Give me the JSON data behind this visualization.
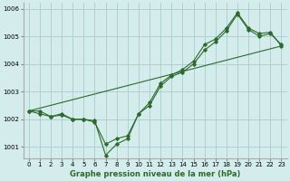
{
  "xlabel": "Graphe pression niveau de la mer (hPa)",
  "ylim": [
    1000.6,
    1006.2
  ],
  "xlim": [
    -0.5,
    23.5
  ],
  "yticks": [
    1001,
    1002,
    1003,
    1004,
    1005,
    1006
  ],
  "xticks": [
    0,
    1,
    2,
    3,
    4,
    5,
    6,
    7,
    8,
    9,
    10,
    11,
    12,
    13,
    14,
    15,
    16,
    17,
    18,
    19,
    20,
    21,
    22,
    23
  ],
  "bg_color": "#d4ecec",
  "line_color": "#2d6a2d",
  "grid_color": "#aacccc",
  "series1": [
    1002.3,
    1002.3,
    1002.1,
    1002.2,
    1002.0,
    1002.0,
    1001.9,
    1001.1,
    1001.3,
    1001.4,
    1002.2,
    1002.5,
    1003.2,
    1003.55,
    1003.7,
    1004.0,
    1004.5,
    1004.8,
    1005.2,
    1005.8,
    1005.25,
    1005.0,
    1005.1,
    1004.7
  ],
  "series2": [
    1002.3,
    1002.2,
    1002.1,
    1002.15,
    1002.0,
    1002.0,
    1001.95,
    1000.7,
    1001.1,
    1001.3,
    1002.2,
    1002.6,
    1003.3,
    1003.6,
    1003.8,
    1004.1,
    1004.7,
    1004.9,
    1005.3,
    1005.85,
    1005.3,
    1005.1,
    1005.15,
    1004.65
  ],
  "series3_x": [
    0,
    23
  ],
  "series3_y": [
    1002.3,
    1004.65
  ],
  "marker_style": "D",
  "marker_size": 1.8,
  "line_width": 0.8,
  "tick_fontsize": 5.0,
  "xlabel_fontsize": 6.0
}
